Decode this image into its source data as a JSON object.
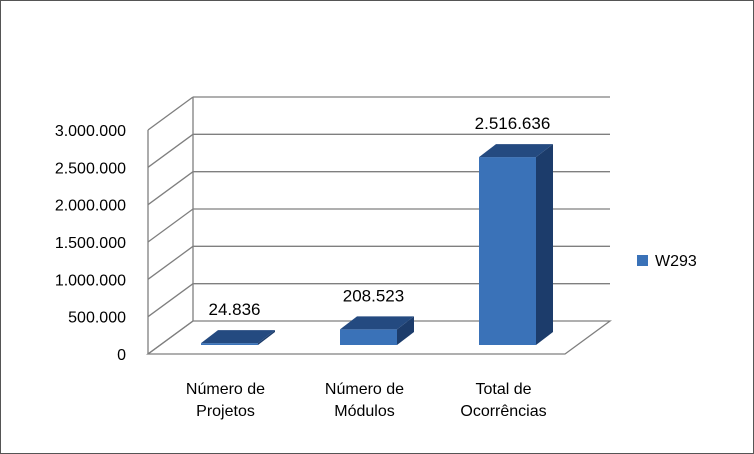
{
  "chart_data": {
    "type": "bar",
    "three_d": true,
    "categories": [
      "Número de Projetos",
      "Número de Módulos",
      "Total de Ocorrências"
    ],
    "category_lines": [
      [
        "Número de",
        "Projetos"
      ],
      [
        "Número de",
        "Módulos"
      ],
      [
        "Total de",
        "Ocorrências"
      ]
    ],
    "series": [
      {
        "name": "W293",
        "values": [
          24836,
          208523,
          2516636
        ],
        "value_labels": [
          "24.836",
          "208.523",
          "2.516.636"
        ],
        "color": "#3a72b8",
        "side_color": "#1c3c6b",
        "top_color": "#244a80"
      }
    ],
    "y_ticks": [
      0,
      500000,
      1000000,
      1500000,
      2000000,
      2500000,
      3000000
    ],
    "y_tick_labels": [
      "0",
      "500.000",
      "1.000.000",
      "1.500.000",
      "2.000.000",
      "2.500.000",
      "3.000.000"
    ],
    "ylim": [
      0,
      3000000
    ],
    "grid": true,
    "legend_position": "right",
    "title": "",
    "xlabel": "",
    "ylabel": ""
  }
}
